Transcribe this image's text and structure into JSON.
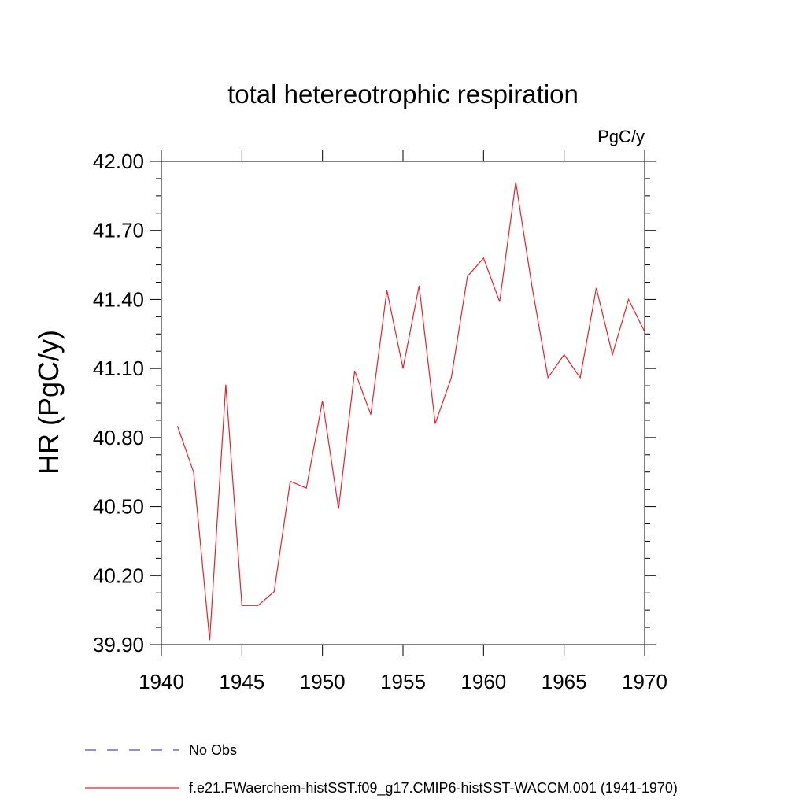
{
  "chart_data": {
    "type": "line",
    "title": "total hetereotrophic respiration",
    "units_label": "PgC/y",
    "ylabel": "HR  (PgC/y)",
    "xlabel": "",
    "xlim": [
      1940,
      1970
    ],
    "ylim": [
      39.9,
      42.0
    ],
    "x_ticks": [
      1940,
      1945,
      1950,
      1955,
      1960,
      1965,
      1970
    ],
    "x_tick_labels": [
      "1940",
      "1945",
      "1950",
      "1955",
      "1960",
      "1965",
      "1970"
    ],
    "y_ticks": [
      39.9,
      40.2,
      40.5,
      40.8,
      41.1,
      41.4,
      41.7,
      42.0
    ],
    "y_tick_labels": [
      "39.90",
      "40.20",
      "40.50",
      "40.80",
      "41.10",
      "41.40",
      "41.70",
      "42.00"
    ],
    "grid": false,
    "series": [
      {
        "name": "f.e21.FWaerchem-histSST.f09_g17.CMIP6-histSST-WACCM.001 (1941-1970)",
        "color": "#e8212b",
        "style": "solid",
        "x": [
          1941,
          1942,
          1943,
          1944,
          1945,
          1946,
          1947,
          1948,
          1949,
          1950,
          1951,
          1952,
          1953,
          1954,
          1955,
          1956,
          1957,
          1958,
          1959,
          1960,
          1961,
          1962,
          1963,
          1964,
          1965,
          1966,
          1967,
          1968,
          1969,
          1970
        ],
        "values": [
          40.85,
          40.65,
          39.92,
          41.03,
          40.07,
          40.07,
          40.13,
          40.61,
          40.58,
          40.96,
          40.49,
          41.09,
          40.9,
          41.44,
          41.1,
          41.46,
          40.86,
          41.06,
          41.5,
          41.58,
          41.39,
          41.91,
          41.46,
          41.06,
          41.16,
          41.06,
          41.45,
          41.16,
          41.4,
          41.26
        ]
      }
    ],
    "legend": {
      "placement": "bottom-left",
      "entries": [
        {
          "label": "No Obs",
          "color": "#5a4a9a",
          "style": "dashed"
        },
        {
          "label": "f.e21.FWaerchem-histSST.f09_g17.CMIP6-histSST-WACCM.001 (1941-1970)",
          "color": "#e8212b",
          "style": "solid"
        }
      ]
    }
  }
}
